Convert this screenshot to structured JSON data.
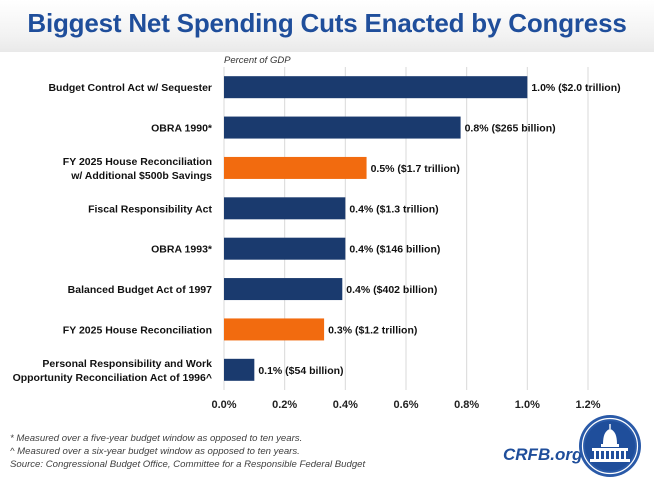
{
  "title": "Biggest Net Spending Cuts Enacted by Congress",
  "colors": {
    "enacted": "#1a3a6e",
    "proposed": "#f26b0f",
    "title": "#1f4e9b",
    "grid": "#d9d9d9"
  },
  "chart_data": {
    "type": "bar",
    "orientation": "horizontal",
    "axis_title": "Percent of GDP",
    "xlim": [
      0,
      1.2
    ],
    "ticks": [
      0,
      0.2,
      0.4,
      0.6,
      0.8,
      1.0,
      1.2
    ],
    "tick_labels": [
      "0.0%",
      "0.2%",
      "0.4%",
      "0.6%",
      "0.8%",
      "1.0%",
      "1.2%"
    ],
    "grid": true,
    "bars": [
      {
        "label": [
          "Budget Control Act w/ Sequester"
        ],
        "value": 1.0,
        "data_label": "1.0% ($2.0 trillion)",
        "category": "enacted"
      },
      {
        "label": [
          "OBRA 1990*"
        ],
        "value": 0.78,
        "data_label": "0.8% ($265 billion)",
        "category": "enacted"
      },
      {
        "label": [
          "FY 2025 House Reconciliation",
          "w/ Additional $500b Savings"
        ],
        "value": 0.47,
        "data_label": "0.5% ($1.7 trillion)",
        "category": "proposed"
      },
      {
        "label": [
          "Fiscal Responsibility Act"
        ],
        "value": 0.4,
        "data_label": "0.4% ($1.3 trillion)",
        "category": "enacted"
      },
      {
        "label": [
          "OBRA 1993*"
        ],
        "value": 0.4,
        "data_label": "0.4% ($146 billion)",
        "category": "enacted"
      },
      {
        "label": [
          "Balanced Budget Act of 1997"
        ],
        "value": 0.39,
        "data_label": "0.4% ($402 billion)",
        "category": "enacted"
      },
      {
        "label": [
          "FY 2025 House Reconciliation"
        ],
        "value": 0.33,
        "data_label": "0.3% ($1.2 trillion)",
        "category": "proposed"
      },
      {
        "label": [
          "Personal Responsibility and Work",
          "Opportunity Reconciliation Act of 1996^"
        ],
        "value": 0.1,
        "data_label": "0.1% ($54 billion)",
        "category": "enacted"
      }
    ]
  },
  "footnotes": [
    "* Measured over a five-year budget window as opposed to ten years.",
    "^ Measured over a six-year budget window as opposed to ten years.",
    "Source: Congressional Budget Office, Committee for a Responsible Federal Budget"
  ],
  "brand": "CRFB.org",
  "logo_icon": "capitol-dome-seal-icon"
}
